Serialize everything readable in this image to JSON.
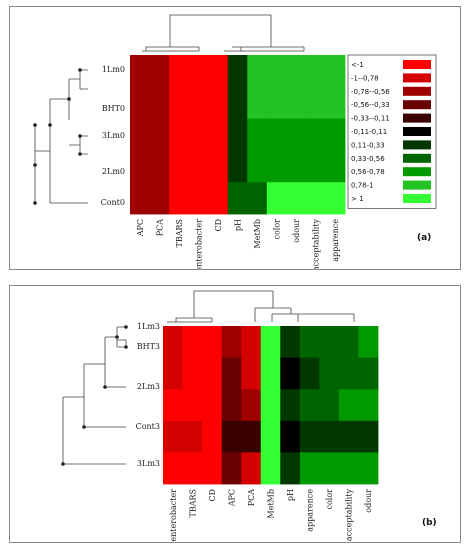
{
  "chart_data": [
    {
      "type": "heatmap",
      "panel_label": "(a)",
      "rows": [
        "1Lm0",
        "BHT0",
        "3Lm0",
        "2Lm0",
        "Cont0"
      ],
      "columns": [
        "APC",
        "PCA",
        "TBARS",
        "enterobacter",
        "CD",
        "pH",
        "MetMb",
        "color",
        "odour",
        "acceptability",
        "apparence"
      ],
      "values": [
        [
          -0.67,
          -0.67,
          -1.2,
          -1.2,
          -1.2,
          0.2,
          0.9,
          0.9,
          0.9,
          0.9,
          0.9
        ],
        [
          -0.67,
          -0.67,
          -1.2,
          -1.2,
          -1.2,
          0.2,
          0.9,
          0.9,
          0.9,
          0.9,
          0.9
        ],
        [
          -0.67,
          -0.67,
          -1.2,
          -1.2,
          -1.2,
          0.2,
          0.67,
          0.67,
          0.67,
          0.67,
          0.67
        ],
        [
          -0.67,
          -0.67,
          -1.2,
          -1.2,
          -1.2,
          0.2,
          0.67,
          0.67,
          0.67,
          0.67,
          0.67
        ],
        [
          -0.67,
          -0.67,
          -1.2,
          -1.2,
          -1.2,
          0.45,
          0.45,
          1.2,
          1.2,
          1.2,
          1.2
        ]
      ],
      "legend": {
        "entries": [
          "<-1",
          "-1--0,78",
          "-0,78--0,56",
          "-0,56--0,33",
          "-0,33--0,11",
          "-0,11-0,11",
          "0,11-0,33",
          "0,33-0,56",
          "0,56-0,78",
          "0,78-1",
          "> 1"
        ],
        "colors": [
          "#ff0000",
          "#d40000",
          "#9e0000",
          "#6a0000",
          "#3a0000",
          "#000000",
          "#003800",
          "#006400",
          "#009a00",
          "#22c322",
          "#33ff33"
        ]
      }
    },
    {
      "type": "heatmap",
      "panel_label": "(b)",
      "rows": [
        "1Lm3",
        "BHT3",
        "2Lm3",
        "Cont3",
        "3Lm3"
      ],
      "columns": [
        "enterobacter",
        "TBARS",
        "CD",
        "APC",
        "PCA",
        "MetMb",
        "pH",
        "apparence",
        "color",
        "acceptability",
        "odour"
      ],
      "values": [
        [
          -0.85,
          -1.2,
          -1.2,
          -0.67,
          -0.85,
          1.2,
          0.2,
          0.45,
          0.45,
          0.45,
          0.67
        ],
        [
          -0.85,
          -1.2,
          -1.2,
          -0.45,
          -0.85,
          1.2,
          0.0,
          0.2,
          0.45,
          0.45,
          0.45
        ],
        [
          -1.2,
          -1.2,
          -1.2,
          -0.45,
          -0.67,
          1.2,
          0.2,
          0.45,
          0.45,
          0.67,
          0.67
        ],
        [
          -0.9,
          -0.9,
          -1.2,
          -0.25,
          -0.25,
          1.2,
          0.0,
          0.2,
          0.2,
          0.2,
          0.2
        ],
        [
          -1.2,
          -1.2,
          -1.2,
          -0.45,
          -0.85,
          1.2,
          0.2,
          0.67,
          0.67,
          0.67,
          0.67
        ]
      ]
    }
  ]
}
